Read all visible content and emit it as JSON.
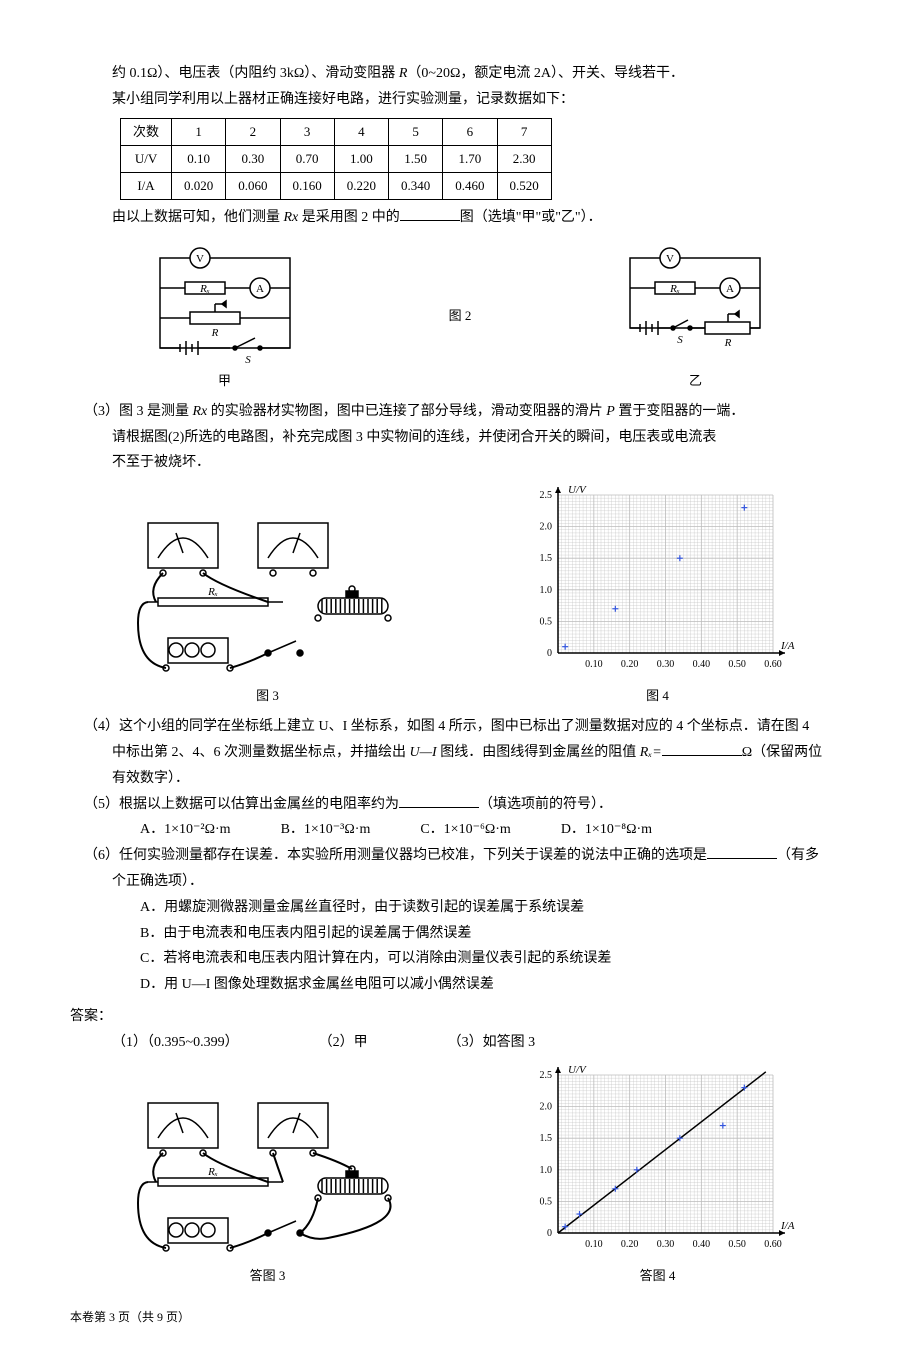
{
  "intro": {
    "line1_prefix": "约 0.1Ω）、电压表（内阻约 3kΩ）、滑动变阻器 ",
    "line1_r": "R",
    "line1_suffix": "（0~20Ω，额定电流 2A）、开关、导线若干．",
    "line2": "某小组同学利用以上器材正确连接好电路，进行实验测量，记录数据如下："
  },
  "table": {
    "headers": [
      "次数",
      "1",
      "2",
      "3",
      "4",
      "5",
      "6",
      "7"
    ],
    "rows": [
      [
        "U/V",
        "0.10",
        "0.30",
        "0.70",
        "1.00",
        "1.50",
        "1.70",
        "2.30"
      ],
      [
        "I/A",
        "0.020",
        "0.060",
        "0.160",
        "0.220",
        "0.340",
        "0.460",
        "0.520"
      ]
    ]
  },
  "q2_tail": {
    "prefix": "由以上数据可知，他们测量 ",
    "rx": "Rx",
    "mid": " 是采用图 2 中的",
    "suffix": "图（选填\"甲\"或\"乙\"）．"
  },
  "circuits": {
    "label_jia": "甲",
    "label_yi": "乙",
    "fig2_label": "图 2",
    "rx": "Rₓ",
    "r": "R",
    "s": "S",
    "v": "V",
    "a": "A"
  },
  "q3": {
    "num": "（3）",
    "line1_a": "图 3 是测量 ",
    "line1_rx": "Rx",
    "line1_b": " 的实验器材实物图，图中已连接了部分导线，滑动变阻器的滑片 ",
    "line1_p": "P",
    "line1_c": " 置于变阻器的一端．",
    "line2": "请根据图(2)所选的电路图，补充完成图 3 中实物间的连线，并使闭合开关的瞬间，电压表或电流表",
    "line3": "不至于被烧坏．"
  },
  "fig3_label": "图 3",
  "fig4_label": "图 4",
  "chart": {
    "ylabel": "U/V",
    "xlabel": "I/A",
    "xticks": [
      "0.10",
      "0.20",
      "0.30",
      "0.40",
      "0.50",
      "0.60"
    ],
    "yticks": [
      "0",
      "0.5",
      "1.0",
      "1.5",
      "2.0",
      "2.5"
    ],
    "points_q4": [
      [
        0.02,
        0.1
      ],
      [
        0.16,
        0.7
      ],
      [
        0.34,
        1.5
      ],
      [
        0.52,
        2.3
      ]
    ],
    "points_ans": [
      [
        0.02,
        0.1
      ],
      [
        0.06,
        0.3
      ],
      [
        0.16,
        0.7
      ],
      [
        0.22,
        1.0
      ],
      [
        0.34,
        1.5
      ],
      [
        0.46,
        1.7
      ],
      [
        0.52,
        2.3
      ]
    ],
    "xlim": [
      0,
      0.6
    ],
    "ylim": [
      0,
      2.5
    ],
    "grid_color": "#bbbbbb",
    "axis_color": "#000000",
    "point_color": "#3355dd",
    "line_color": "#000000",
    "bg": "#ffffff"
  },
  "q4": {
    "num": "（4）",
    "line1": "这个小组的同学在坐标纸上建立 U、I 坐标系，如图 4 所示，图中已标出了测量数据对应的 4 个坐标点．请在图 4",
    "line2_a": "中标出第 2、4、6 次测量数据坐标点，并描绘出 ",
    "line2_ui": "U—I",
    "line2_b": " 图线．由图线得到金属丝的阻值 ",
    "line2_rx": "Rₓ=",
    "line2_c": "Ω（保留两位",
    "line3": "有效数字）．"
  },
  "q5": {
    "num": "（5）",
    "text": "根据以上数据可以估算出金属丝的电阻率约为",
    "suffix": "（填选项前的符号）．",
    "opts": [
      "A．1×10⁻²Ω·m",
      "B．1×10⁻³Ω·m",
      "C．1×10⁻⁶Ω·m",
      "D．1×10⁻⁸Ω·m"
    ]
  },
  "q6": {
    "num": "（6）",
    "line1": "任何实验测量都存在误差．本实验所用测量仪器均已校准，下列关于误差的说法中正确的选项是",
    "suffix": "（有多",
    "line2": "个正确选项）．",
    "opts": [
      "A．用螺旋测微器测量金属丝直径时，由于读数引起的误差属于系统误差",
      "B．由于电流表和电压表内阻引起的误差属于偶然误差",
      "C．若将电流表和电压表内阻计算在内，可以消除由测量仪表引起的系统误差",
      "D．用 U—I 图像处理数据求金属丝电阻可以减小偶然误差"
    ]
  },
  "answers": {
    "label": "答案：",
    "a1": "（1）（0.395~0.399）",
    "a2": "（2）甲",
    "a3": "（3）如答图 3",
    "fig3_label": "答图 3",
    "fig4_label": "答图 4"
  },
  "footer": "本卷第 3 页（共 9 页）"
}
